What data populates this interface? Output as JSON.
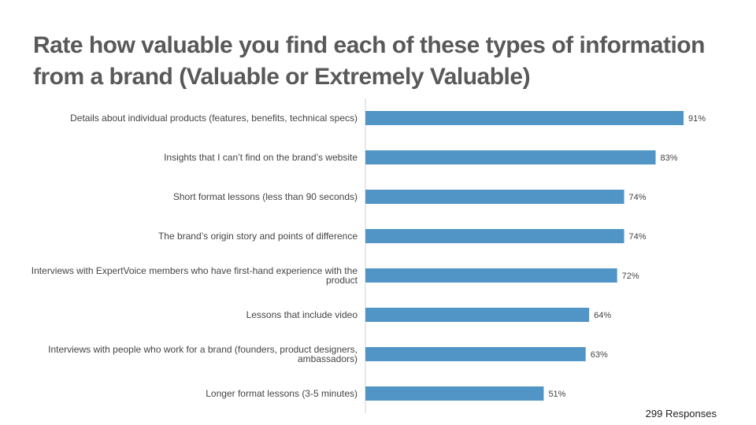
{
  "chart_data": {
    "type": "bar",
    "orientation": "horizontal",
    "title": "Rate how valuable you find each of these types of information from a brand (Valuable or Extremely Valuable)",
    "categories": [
      "Details about individual products (features, benefits, technical specs)",
      "Insights that I can’t find on the brand’s website",
      "Short format lessons (less than 90 seconds)",
      "The brand’s origin story and points of difference",
      "Interviews with ExpertVoice members who have first-hand experience with the product",
      "Lessons that include video",
      "Interviews with people who work for a brand (founders, product designers, ambassadors)",
      "Longer format lessons (3-5 minutes)"
    ],
    "values": [
      91,
      83,
      74,
      74,
      72,
      64,
      63,
      51
    ],
    "value_labels": [
      "91%",
      "83%",
      "74%",
      "74%",
      "72%",
      "64%",
      "63%",
      "51%"
    ],
    "color": "#5195c7",
    "xlim": [
      0,
      100
    ],
    "annotation": "299 Responses"
  }
}
